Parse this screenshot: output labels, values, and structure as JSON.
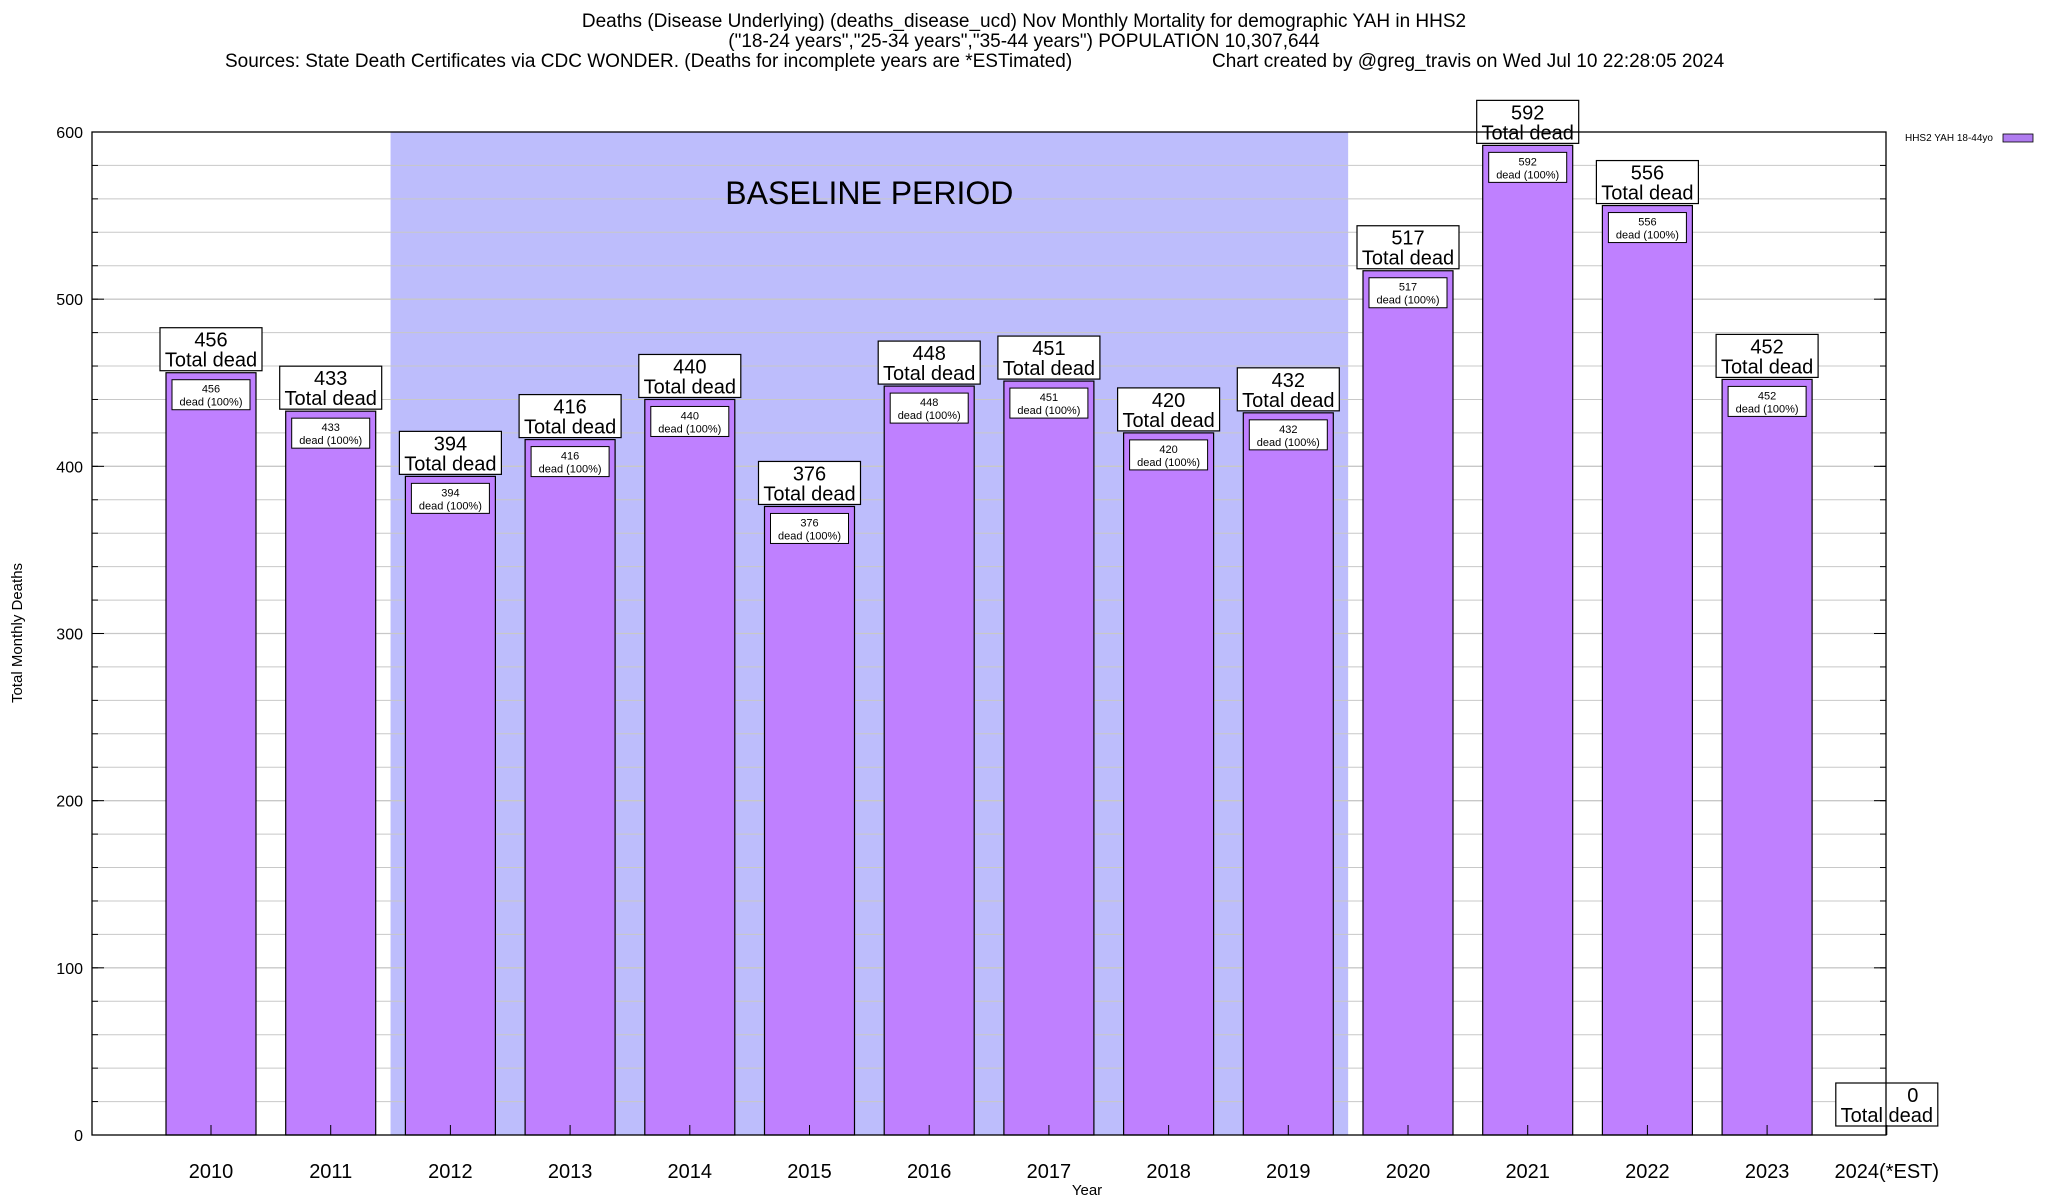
{
  "chart_data": {
    "type": "bar",
    "title": "Deaths (Disease Underlying) (deaths_disease_ucd) Nov Monthly Mortality for demographic YAH in HHS2",
    "subtitle": "(\"18-24 years\",\"25-34 years\",\"35-44 years\") POPULATION 10,307,644",
    "source": "Sources: State Death Certificates via CDC WONDER. (Deaths for incomplete years are *ESTimated)",
    "credit": "Chart created by @greg_travis on Wed Jul 10 22:28:05 2024",
    "xlabel": "Year",
    "ylabel": "Total Monthly Deaths",
    "ylim": [
      0,
      600
    ],
    "yticks": [
      0,
      100,
      200,
      300,
      400,
      500,
      600
    ],
    "categories": [
      "2010",
      "2011",
      "2012",
      "2013",
      "2014",
      "2015",
      "2016",
      "2017",
      "2018",
      "2019",
      "2020",
      "2021",
      "2022",
      "2023",
      "2024(*EST)"
    ],
    "series": [
      {
        "name": "HHS2 YAH 18-44yo",
        "values": [
          456,
          433,
          394,
          416,
          440,
          376,
          448,
          451,
          420,
          432,
          517,
          592,
          556,
          452,
          0
        ]
      }
    ],
    "total_label": "Total dead",
    "inner_label": "dead (100%)",
    "baseline": {
      "label": "BASELINE PERIOD",
      "start": "2012",
      "end": "2019"
    },
    "legend": {
      "position": "top-right",
      "label": "HHS2 YAH 18-44yo"
    },
    "grid": true
  },
  "colors": {
    "bar": "#bf80ff",
    "baseline": "#bdbdfc",
    "grid": "#c8c8c8",
    "legend_swatch": "#b07cf0"
  }
}
